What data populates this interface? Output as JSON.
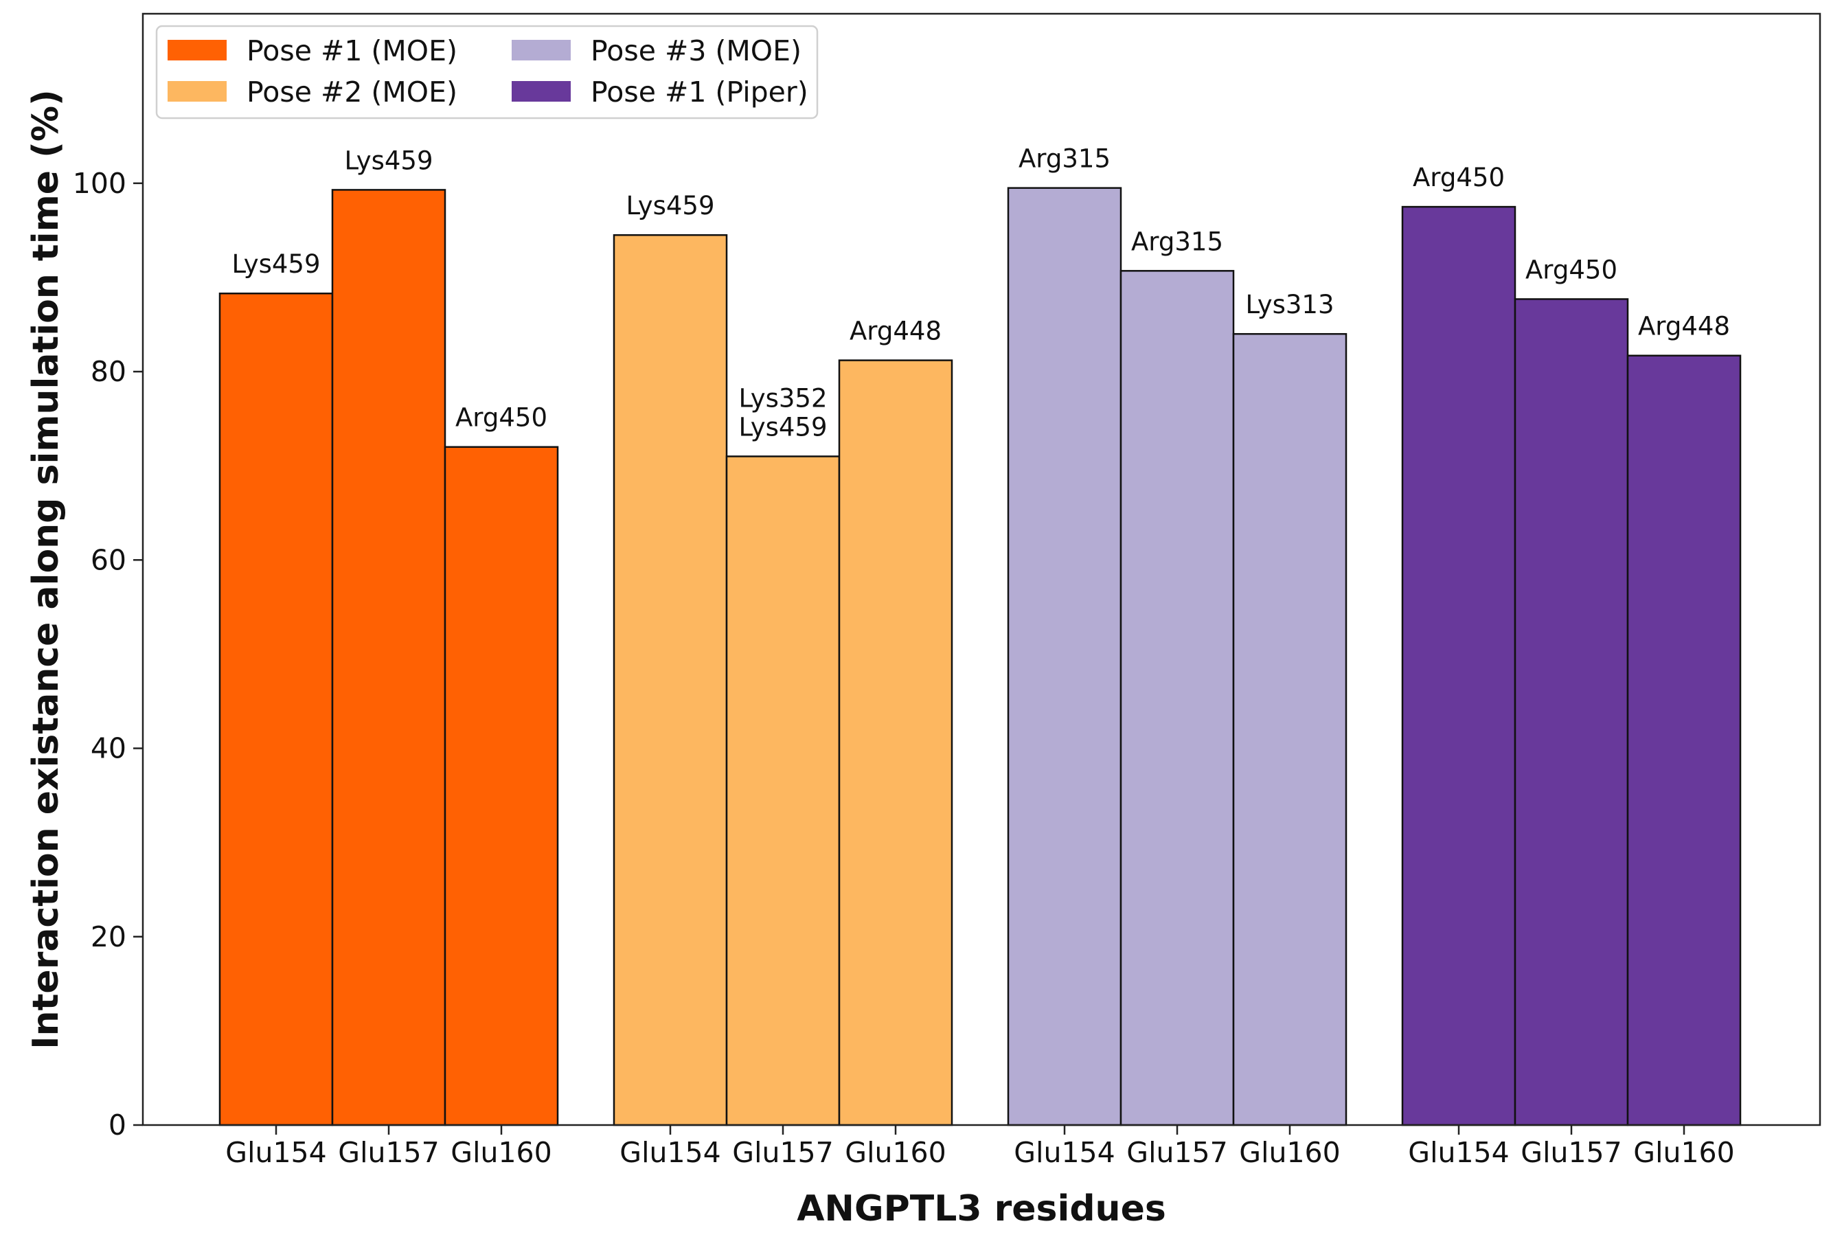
{
  "chart_data": {
    "type": "bar",
    "xlabel": "ANGPTL3 residues",
    "ylabel": "Interaction existance along simulation time (%)",
    "ylim": [
      0,
      118
    ],
    "yticks": [
      0,
      20,
      40,
      60,
      80,
      100
    ],
    "grid": false,
    "legend_position": "top-left",
    "series": [
      {
        "name": "Pose #1 (MOE)",
        "color": "#FF6103",
        "categories": [
          "Glu154",
          "Glu157",
          "Glu160"
        ],
        "values": [
          88.3,
          99.3,
          72.0
        ],
        "labels": [
          "Lys459",
          "Lys459",
          "Arg450"
        ]
      },
      {
        "name": "Pose #2 (MOE)",
        "color": "#FDB760",
        "categories": [
          "Glu154",
          "Glu157",
          "Glu160"
        ],
        "values": [
          94.5,
          71.0,
          81.2
        ],
        "labels": [
          "Lys459",
          "Lys352\nLys459",
          "Arg448"
        ]
      },
      {
        "name": "Pose #3 (MOE)",
        "color": "#B4ACD3",
        "categories": [
          "Glu154",
          "Glu157",
          "Glu160"
        ],
        "values": [
          99.5,
          90.7,
          84.0
        ],
        "labels": [
          "Arg315",
          "Arg315",
          "Lys313"
        ]
      },
      {
        "name": "Pose #1 (Piper)",
        "color": "#68399B",
        "categories": [
          "Glu154",
          "Glu157",
          "Glu160"
        ],
        "values": [
          97.5,
          87.7,
          81.7
        ],
        "labels": [
          "Arg450",
          "Arg450",
          "Arg448"
        ]
      }
    ]
  }
}
